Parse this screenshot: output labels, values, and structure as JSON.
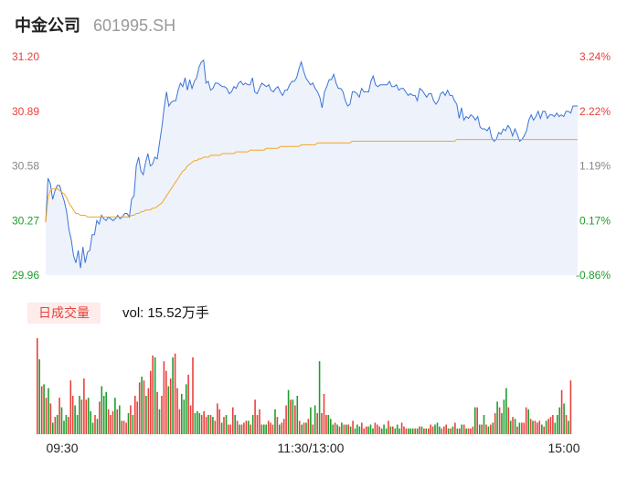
{
  "header": {
    "name": "中金公司",
    "code": "601995.SH"
  },
  "chart_data": [
    {
      "type": "line",
      "title": "中金公司 601995.SH",
      "y_left_ticks": [
        "31.20",
        "30.89",
        "30.58",
        "30.27",
        "29.96"
      ],
      "y_right_ticks": [
        "3.24%",
        "2.22%",
        "1.19%",
        "0.17%",
        "-0.86%"
      ],
      "x_ticks": [
        "09:30",
        "11:30/13:00",
        "15:00"
      ],
      "ylim": [
        29.96,
        31.2
      ],
      "colors": {
        "price": "#3b74d6",
        "avg": "#f5a623",
        "up": "#e8403a",
        "down": "#1f9d2c",
        "fill": "#eef2fb"
      },
      "series": [
        {
          "role": "price",
          "values": [
            30.26,
            30.51,
            30.48,
            30.39,
            30.44,
            30.47,
            30.47,
            30.42,
            30.38,
            30.32,
            30.22,
            30.16,
            30.07,
            30.03,
            30.1,
            30.0,
            30.12,
            30.03,
            30.09,
            30.1,
            30.19,
            30.19,
            30.27,
            30.25,
            30.3,
            30.28,
            30.27,
            30.29,
            30.28,
            30.27,
            30.28,
            30.3,
            30.28,
            30.29,
            30.31,
            30.31,
            30.29,
            30.39,
            30.41,
            30.58,
            30.63,
            30.55,
            30.53,
            30.6,
            30.65,
            30.58,
            30.59,
            30.63,
            30.62,
            30.71,
            30.8,
            30.91,
            31.0,
            30.92,
            30.94,
            30.95,
            30.95,
            31.01,
            31.05,
            31.03,
            31.08,
            31.01,
            31.07,
            31.02,
            31.06,
            31.08,
            31.14,
            31.17,
            31.18,
            31.05,
            31.06,
            31.01,
            31.02,
            31.05,
            31.05,
            31.04,
            31.03,
            31.03,
            31.02,
            30.99,
            31.0,
            31.03,
            31.02,
            31.05,
            31.06,
            31.04,
            31.05,
            31.04,
            31.04,
            31.08,
            31.0,
            30.99,
            31.02,
            31.05,
            31.04,
            31.03,
            31.04,
            31.01,
            31.0,
            31.02,
            31.03,
            31.0,
            30.98,
            31.01,
            31.01,
            31.04,
            31.06,
            31.06,
            31.08,
            31.13,
            31.17,
            31.12,
            31.08,
            31.06,
            31.04,
            31.05,
            31.02,
            31.0,
            30.97,
            30.91,
            31.0,
            31.03,
            31.07,
            31.07,
            31.1,
            31.05,
            31.02,
            31.02,
            31.0,
            30.95,
            30.92,
            30.93,
            31.0,
            31.0,
            30.99,
            30.97,
            31.02,
            31.0,
            31.0,
            31.0,
            31.06,
            31.09,
            31.04,
            31.03,
            31.04,
            31.04,
            31.04,
            31.04,
            31.06,
            31.03,
            31.03,
            31.04,
            31.01,
            31.02,
            31.02,
            31.0,
            30.98,
            30.99,
            30.98,
            30.98,
            30.95,
            31.02,
            31.01,
            30.99,
            30.97,
            30.99,
            30.99,
            30.95,
            30.93,
            30.95,
            30.99,
            31.0,
            30.98,
            31.01,
            30.98,
            30.98,
            30.95,
            30.93,
            30.85,
            30.91,
            30.84,
            30.86,
            30.85,
            30.87,
            30.86,
            30.84,
            30.86,
            30.8,
            30.79,
            30.79,
            30.78,
            30.8,
            30.74,
            30.72,
            30.73,
            30.77,
            30.76,
            30.79,
            30.78,
            30.81,
            30.79,
            30.75,
            30.79,
            30.76,
            30.72,
            30.73,
            30.75,
            30.78,
            30.84,
            30.87,
            30.84,
            30.86,
            30.89,
            30.85,
            30.89,
            30.89,
            30.85,
            30.87,
            30.87,
            30.86,
            30.88,
            30.86,
            30.87,
            30.86,
            30.89,
            30.89,
            30.88,
            30.92,
            30.92,
            30.92
          ]
        },
        {
          "role": "avg",
          "values": [
            30.26,
            30.4,
            30.44,
            30.45,
            30.45,
            30.45,
            30.44,
            30.43,
            30.42,
            30.4,
            30.37,
            30.35,
            30.33,
            30.31,
            30.31,
            30.3,
            30.3,
            30.3,
            30.29,
            30.29,
            30.29,
            30.29,
            30.29,
            30.29,
            30.29,
            30.29,
            30.29,
            30.29,
            30.29,
            30.29,
            30.29,
            30.29,
            30.29,
            30.29,
            30.29,
            30.29,
            30.29,
            30.3,
            30.3,
            30.31,
            30.31,
            30.32,
            30.32,
            30.33,
            30.33,
            30.33,
            30.34,
            30.34,
            30.35,
            30.36,
            30.37,
            30.39,
            30.41,
            30.43,
            30.45,
            30.47,
            30.49,
            30.51,
            30.53,
            30.55,
            30.56,
            30.58,
            30.59,
            30.6,
            30.61,
            30.61,
            30.62,
            30.62,
            30.63,
            30.63,
            30.63,
            30.64,
            30.64,
            30.64,
            30.64,
            30.64,
            30.65,
            30.65,
            30.65,
            30.65,
            30.65,
            30.65,
            30.66,
            30.66,
            30.66,
            30.66,
            30.66,
            30.66,
            30.67,
            30.67,
            30.67,
            30.67,
            30.67,
            30.67,
            30.67,
            30.68,
            30.68,
            30.68,
            30.68,
            30.68,
            30.68,
            30.69,
            30.69,
            30.69,
            30.69,
            30.69,
            30.69,
            30.69,
            30.69,
            30.69,
            30.7,
            30.7,
            30.7,
            30.7,
            30.7,
            30.7,
            30.7,
            30.71,
            30.71,
            30.71,
            30.71,
            30.71,
            30.71,
            30.71,
            30.71,
            30.71,
            30.71,
            30.71,
            30.71,
            30.71,
            30.71,
            30.71,
            30.72,
            30.72,
            30.72,
            30.72,
            30.72,
            30.72,
            30.72,
            30.72,
            30.72,
            30.72,
            30.72,
            30.72,
            30.72,
            30.72,
            30.72,
            30.72,
            30.72,
            30.72,
            30.72,
            30.72,
            30.72,
            30.72,
            30.72,
            30.72,
            30.72,
            30.72,
            30.72,
            30.72,
            30.72,
            30.72,
            30.72,
            30.72,
            30.72,
            30.72,
            30.72,
            30.72,
            30.72,
            30.72,
            30.72,
            30.72,
            30.72,
            30.72,
            30.72,
            30.72,
            30.72,
            30.73,
            30.73,
            30.73,
            30.73,
            30.73,
            30.73,
            30.73,
            30.73,
            30.73,
            30.73,
            30.73,
            30.73,
            30.73,
            30.73,
            30.73,
            30.73,
            30.73,
            30.73,
            30.73,
            30.73,
            30.73,
            30.73,
            30.73,
            30.73,
            30.73,
            30.73,
            30.73,
            30.73,
            30.73,
            30.73,
            30.73,
            30.73,
            30.73,
            30.73,
            30.73,
            30.73,
            30.73,
            30.73,
            30.73,
            30.73,
            30.73,
            30.73,
            30.73,
            30.73,
            30.73,
            30.73,
            30.73,
            30.73,
            30.73,
            30.73,
            30.73,
            30.73,
            30.73
          ]
        }
      ]
    },
    {
      "type": "bar",
      "label": "日成交量",
      "vol_label": "vol:",
      "vol_value": "15.52万手",
      "ylim": [
        0,
        100
      ],
      "values": [
        100,
        78,
        50,
        52,
        38,
        48,
        32,
        12,
        18,
        20,
        38,
        28,
        14,
        20,
        18,
        56,
        40,
        30,
        20,
        40,
        36,
        58,
        36,
        38,
        24,
        12,
        20,
        16,
        34,
        50,
        40,
        44,
        26,
        20,
        24,
        38,
        26,
        30,
        14,
        14,
        12,
        22,
        30,
        20,
        40,
        34,
        54,
        60,
        56,
        40,
        48,
        66,
        82,
        80,
        44,
        26,
        40,
        76,
        66,
        50,
        58,
        80,
        84,
        48,
        26,
        42,
        36,
        52,
        62,
        30,
        80,
        22,
        24,
        22,
        20,
        24,
        18,
        20,
        20,
        18,
        14,
        32,
        26,
        12,
        18,
        20,
        10,
        10,
        28,
        20,
        14,
        10,
        10,
        12,
        14,
        14,
        10,
        20,
        36,
        20,
        26,
        10,
        10,
        10,
        14,
        12,
        10,
        26,
        18,
        10,
        12,
        16,
        30,
        46,
        36,
        36,
        30,
        40,
        14,
        10,
        12,
        12,
        16,
        28,
        10,
        30,
        22,
        76,
        22,
        42,
        20,
        20,
        16,
        10,
        12,
        10,
        8,
        12,
        10,
        10,
        10,
        8,
        14,
        6,
        10,
        8,
        12,
        6,
        8,
        8,
        10,
        6,
        12,
        10,
        8,
        6,
        10,
        6,
        14,
        8,
        8,
        6,
        10,
        6,
        12,
        8,
        6,
        6,
        6,
        6,
        6,
        6,
        8,
        8,
        6,
        6,
        6,
        10,
        8,
        10,
        12,
        8,
        6,
        8,
        10,
        6,
        6,
        8,
        12,
        6,
        6,
        10,
        10,
        6,
        6,
        6,
        8,
        28,
        28,
        10,
        10,
        20,
        10,
        8,
        10,
        12,
        22,
        34,
        28,
        22,
        36,
        48,
        28,
        14,
        18,
        16,
        8,
        12,
        12,
        12,
        28,
        26,
        16,
        14,
        14,
        12,
        14,
        10,
        8,
        14,
        16,
        18,
        20,
        12,
        20,
        28,
        46,
        32,
        20,
        14,
        56
      ]
    }
  ]
}
